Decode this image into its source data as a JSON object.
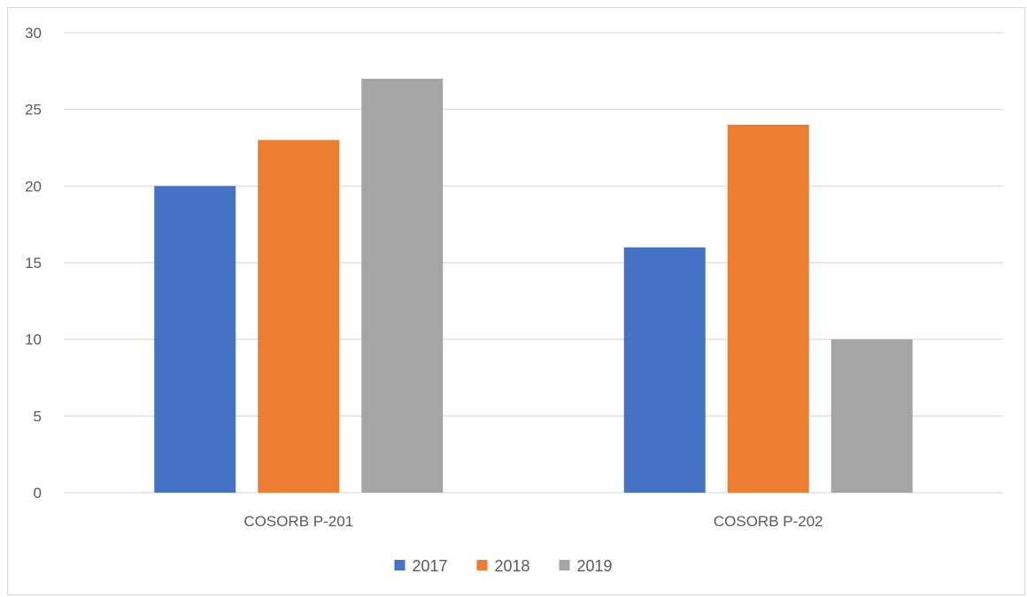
{
  "chart_data": {
    "type": "bar",
    "categories": [
      "COSORB P-201",
      "COSORB P-202"
    ],
    "series": [
      {
        "name": "2017",
        "values": [
          20,
          16
        ],
        "color": "#4472C4"
      },
      {
        "name": "2018",
        "values": [
          23,
          24
        ],
        "color": "#ED7D31"
      },
      {
        "name": "2019",
        "values": [
          27,
          10
        ],
        "color": "#A5A5A5"
      }
    ],
    "title": "",
    "xlabel": "",
    "ylabel": "",
    "ylim": [
      0,
      30
    ],
    "yticks": [
      0,
      5,
      10,
      15,
      20,
      25,
      30
    ],
    "grid": true,
    "legend_position": "bottom",
    "gridline_color": "#d9d9d9",
    "text_color": "#595959"
  }
}
